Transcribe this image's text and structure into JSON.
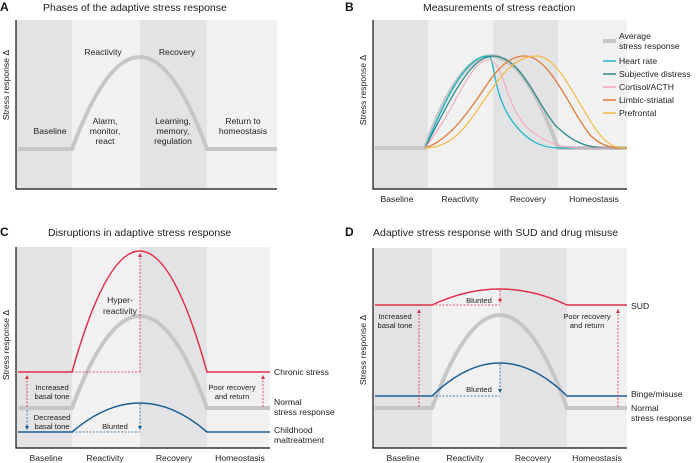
{
  "colors": {
    "average": "#c6c6c6",
    "heart_rate": "#1fb5c9",
    "subjective_distress": "#2e8b8b",
    "cortisol": "#f4a6b8",
    "limbic": "#e07b39",
    "prefrontal": "#f5b942",
    "red": "#e0304a",
    "blue": "#1a5e96"
  },
  "y_axis_label": "Stress response Δ",
  "phases": [
    "Baseline",
    "Reactivity",
    "Recovery",
    "Homeostasis"
  ],
  "panelA": {
    "letter": "A",
    "title": "Phases of the adaptive stress response",
    "reactivity": "Reactivity",
    "recovery": "Recovery",
    "baseline": "Baseline",
    "alarm": [
      "Alarm,",
      "monitor,",
      "react"
    ],
    "learning": [
      "Learning,",
      "memory,",
      "regulation"
    ],
    "return": [
      "Return to",
      "homeostasis"
    ]
  },
  "panelB": {
    "letter": "B",
    "title": "Measurements of stress reaction",
    "legend": {
      "average": [
        "Average",
        "stress response"
      ],
      "heart_rate": "Heart rate",
      "subjective_distress": "Subjective distress",
      "cortisol": "Cortisol/ACTH",
      "limbic": "Limbic-striatial",
      "prefrontal": "Prefrontal"
    }
  },
  "panelC": {
    "letter": "C",
    "title": "Disruptions in adaptive stress response",
    "hyper": [
      "Hyper-",
      "reactivity"
    ],
    "increased": [
      "Increased",
      "basal tone"
    ],
    "decreased": [
      "Decreased",
      "basal tone"
    ],
    "blunted": "Blunted",
    "poor": [
      "Poor recovery",
      "and return"
    ],
    "chronic": "Chronic stress",
    "normal": [
      "Normal",
      "stress response"
    ],
    "childhood": [
      "Childhood",
      "maltreatment"
    ]
  },
  "panelD": {
    "letter": "D",
    "title": "Adaptive stress response with SUD and drug misuse",
    "blunted_top": "Blunted",
    "blunted_bottom": "Blunted",
    "increased": [
      "Increased",
      "basal tone"
    ],
    "poor": [
      "Poor recovery",
      "and return"
    ],
    "sud": "SUD",
    "binge": "Binge/misuse",
    "normal": [
      "Normal",
      "stress response"
    ]
  }
}
